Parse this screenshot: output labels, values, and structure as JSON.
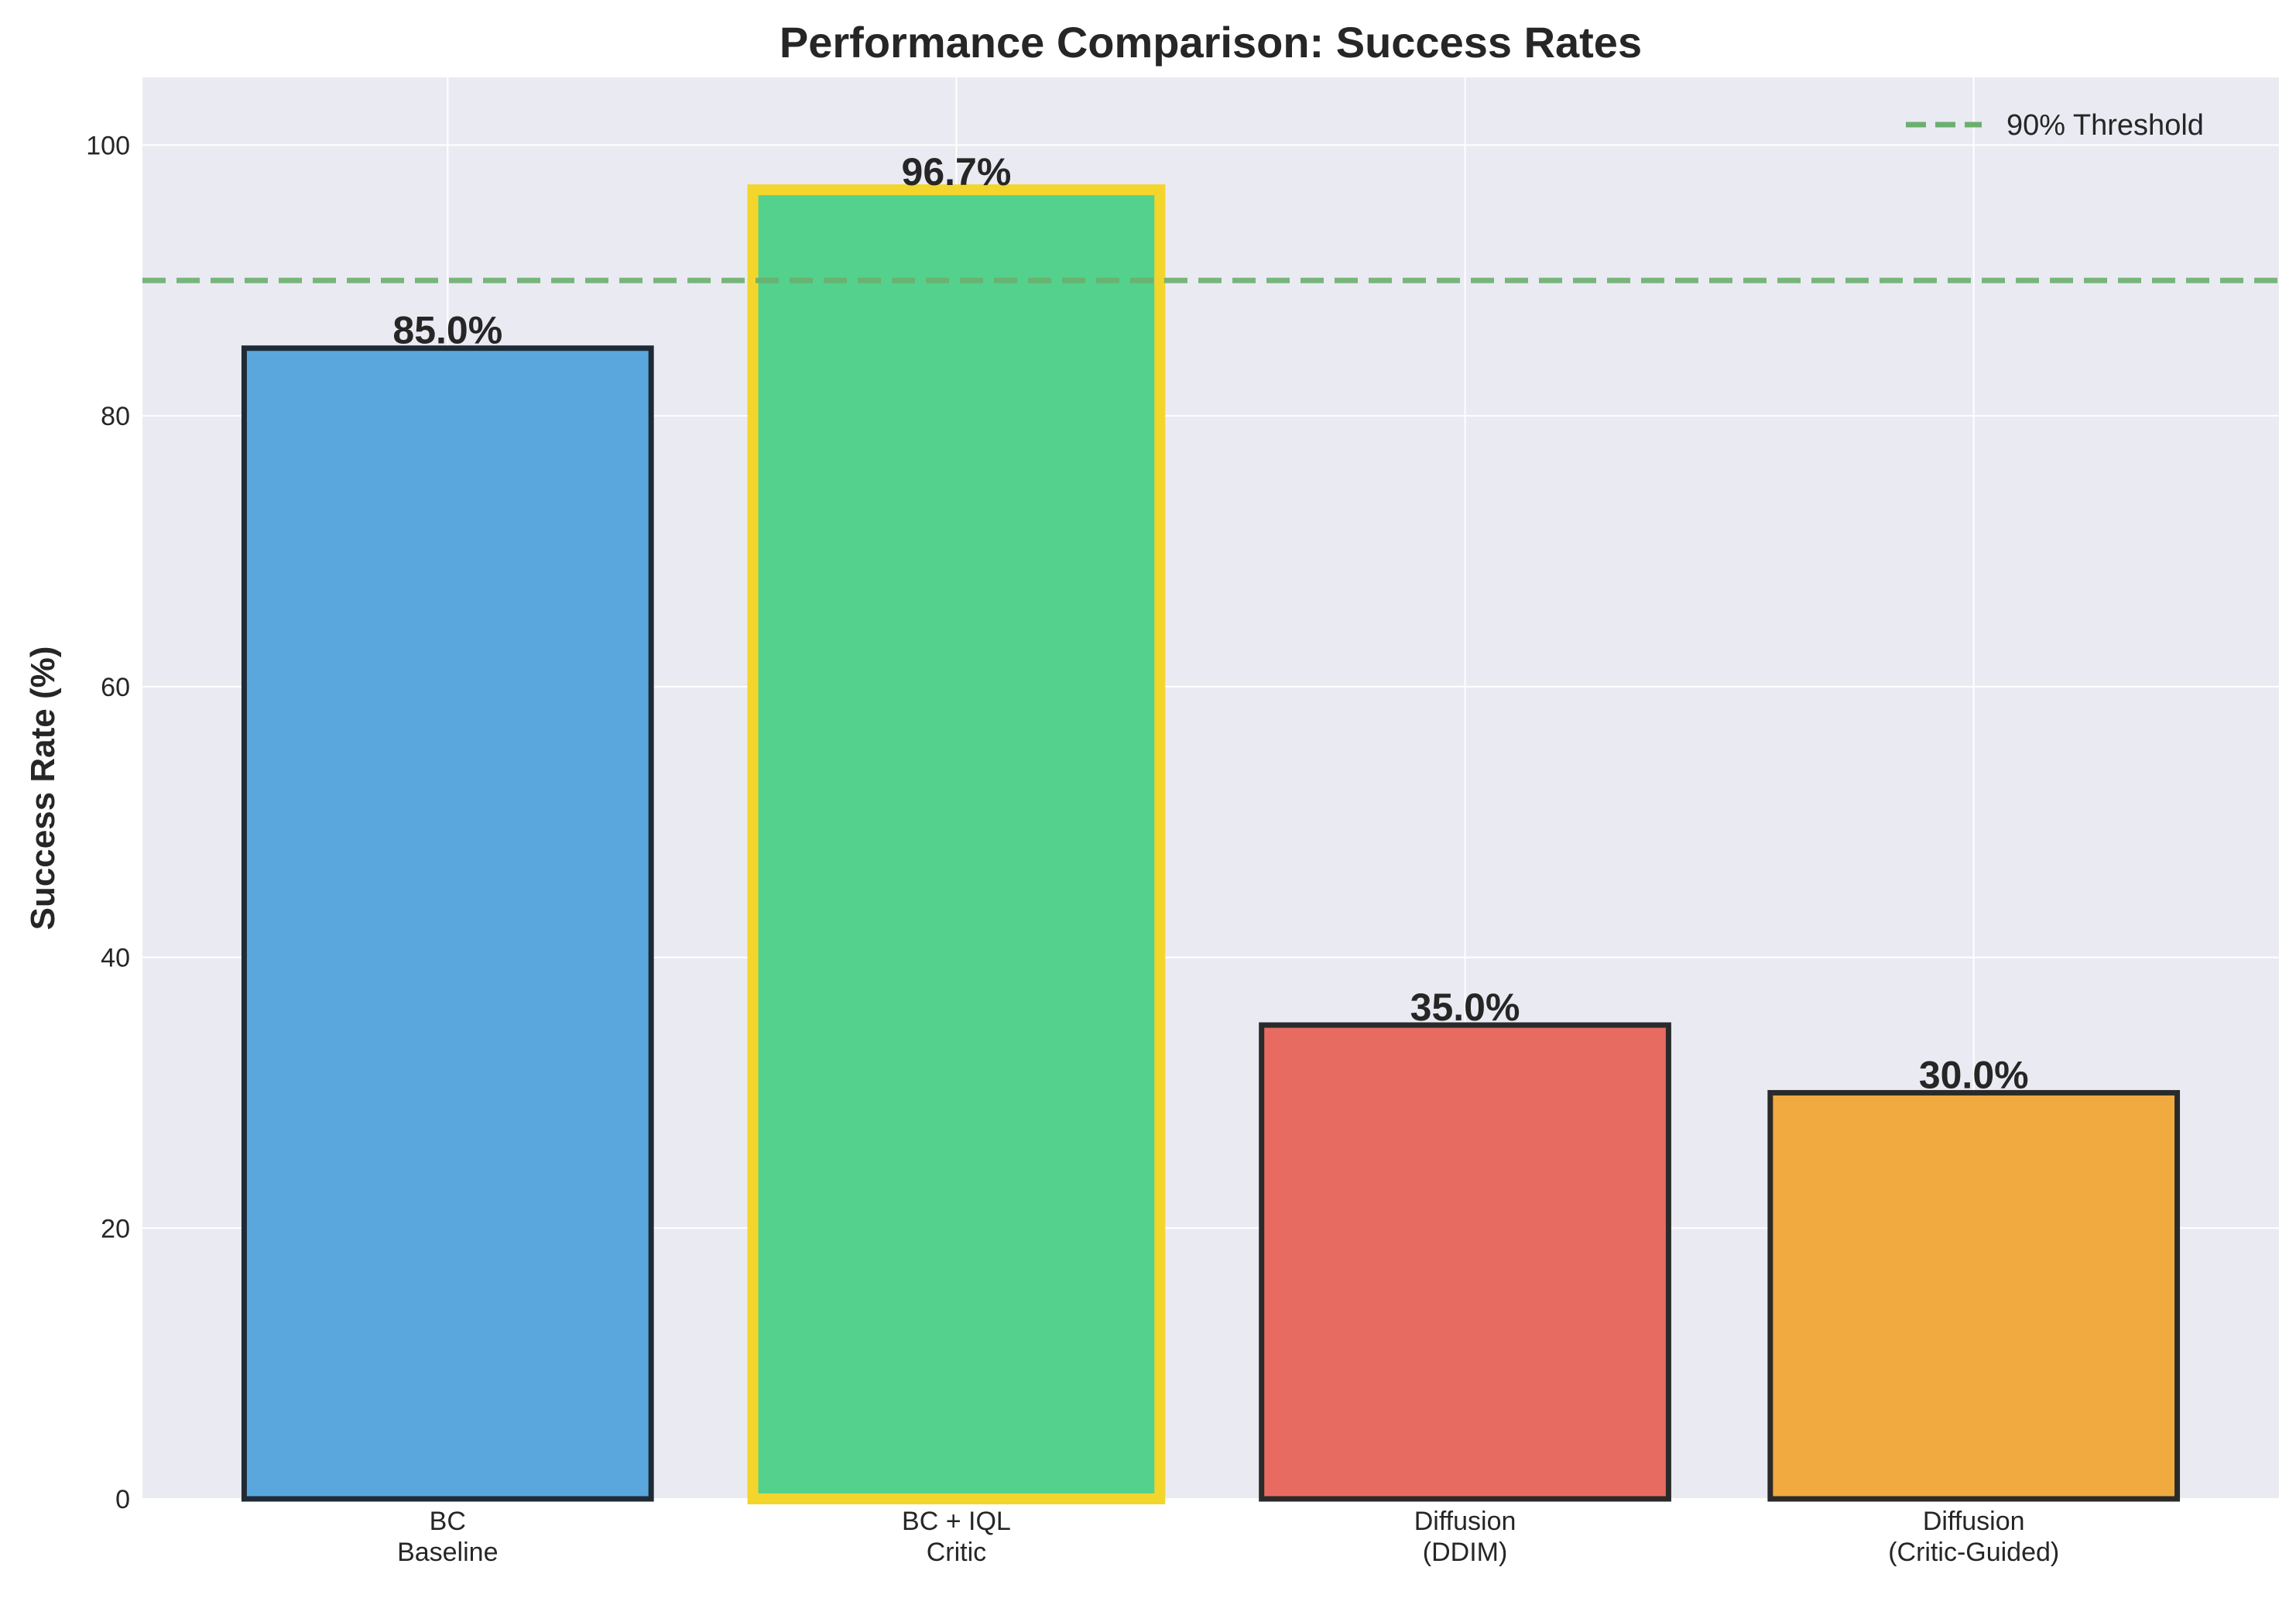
{
  "chart_data": {
    "type": "bar",
    "title": "Performance Comparison: Success Rates",
    "xlabel": "",
    "ylabel": "Success Rate (%)",
    "ylim": [
      0,
      105
    ],
    "yticks": [
      0,
      20,
      40,
      60,
      80,
      100
    ],
    "grid": true,
    "categories": [
      [
        "BC",
        "Baseline"
      ],
      [
        "BC + IQL",
        "Critic"
      ],
      [
        "Diffusion",
        "(DDIM)"
      ],
      [
        "Diffusion",
        "(Critic-Guided)"
      ]
    ],
    "values": [
      85.0,
      96.7,
      35.0,
      30.0
    ],
    "value_labels": [
      "85.0%",
      "96.7%",
      "35.0%",
      "30.0%"
    ],
    "colors": [
      "#5aa7dd",
      "#54d18c",
      "#e86b62",
      "#f0aa40"
    ],
    "edge_colors": [
      "#1f2a36",
      "#f3d52c",
      "#2a2a2a",
      "#2a2a2a"
    ],
    "highlighted_index": 1,
    "threshold": {
      "value": 90,
      "label": "90% Threshold",
      "color": "#6aaf6e",
      "style": "dashed"
    },
    "legend_position": "top-right",
    "background_color": "#eaeaf2",
    "grid_color": "#ffffff"
  }
}
